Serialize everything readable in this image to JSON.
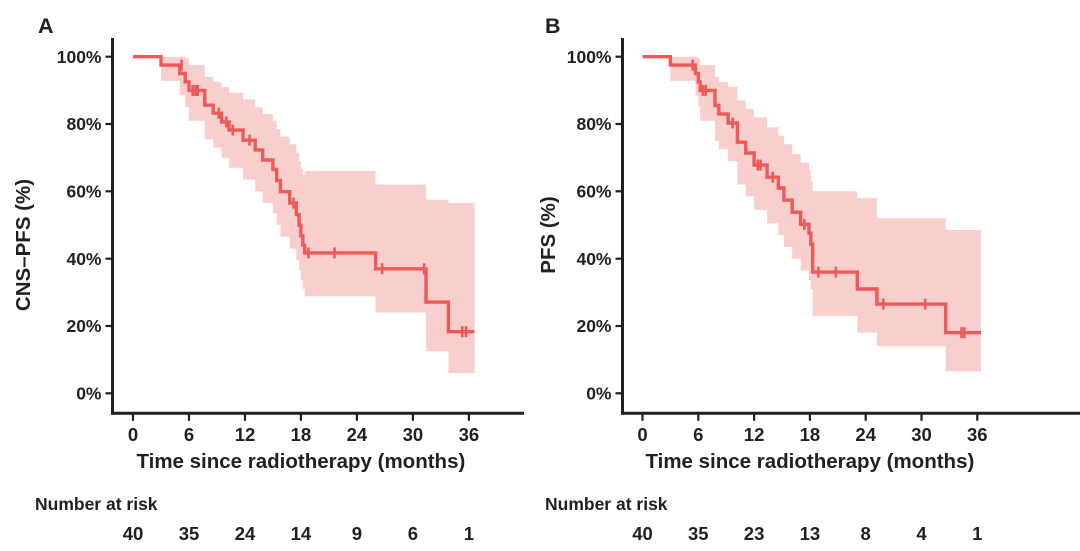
{
  "figure": {
    "background": "#ffffff",
    "panels": [
      "A",
      "B"
    ]
  },
  "colors": {
    "curve": "#ea5b59",
    "band": "#f9cfce",
    "axis": "#231f20",
    "text": "#231f20"
  },
  "chart_data": [
    {
      "type": "line",
      "km_style": "step_with_ci",
      "panel_letter": "A",
      "ylabel": "CNS–PFS (%)",
      "xlabel": "Time since radiotherapy (months)",
      "xlim": [
        0,
        36
      ],
      "ylim": [
        0,
        100
      ],
      "xticks": [
        0,
        6,
        12,
        18,
        24,
        30,
        36
      ],
      "ytick_labels": [
        "0%",
        "20%",
        "40%",
        "60%",
        "80%",
        "100%"
      ],
      "yticks": [
        0,
        20,
        40,
        60,
        80,
        100
      ],
      "grid": "off",
      "legend": "none",
      "risk_label": "Number at risk",
      "risk_numbers": [
        40,
        35,
        24,
        14,
        9,
        6,
        1
      ],
      "end_time": 36.6,
      "curve": [
        [
          0,
          100
        ],
        [
          3,
          97.5
        ],
        [
          5.0,
          95.0
        ],
        [
          5.6,
          92.5
        ],
        [
          6.0,
          90.0
        ],
        [
          7.7,
          85.6
        ],
        [
          8.6,
          83.2
        ],
        [
          9.5,
          80.6
        ],
        [
          10.3,
          78.2
        ],
        [
          11.8,
          75.2
        ],
        [
          13.1,
          72.3
        ],
        [
          13.9,
          69.3
        ],
        [
          15.0,
          66.5
        ],
        [
          15.4,
          63.2
        ],
        [
          15.8,
          59.9
        ],
        [
          16.8,
          56.5
        ],
        [
          17.5,
          53.1
        ],
        [
          17.8,
          49.9
        ],
        [
          18.0,
          46.8
        ],
        [
          18.2,
          44.0
        ],
        [
          18.4,
          41.7
        ],
        [
          26.0,
          37.0
        ],
        [
          31.4,
          27.1
        ],
        [
          33.8,
          18.3
        ]
      ],
      "censor_marks": [
        [
          5.2,
          97.5
        ],
        [
          6.4,
          90.0
        ],
        [
          6.7,
          90.0
        ],
        [
          6.95,
          90.0
        ],
        [
          9.2,
          83.2
        ],
        [
          10.0,
          80.6
        ],
        [
          10.7,
          78.2
        ],
        [
          12.5,
          75.2
        ],
        [
          17.2,
          56.5
        ],
        [
          18.8,
          41.7
        ],
        [
          21.6,
          41.7
        ],
        [
          26.7,
          37.0
        ],
        [
          31.2,
          37.0
        ],
        [
          35.3,
          18.3
        ],
        [
          35.7,
          18.3
        ]
      ],
      "ci_band": [
        [
          3,
          92.8,
          100
        ],
        [
          5.0,
          88.5,
          100
        ],
        [
          5.6,
          85,
          99.5
        ],
        [
          6.0,
          81,
          97.5
        ],
        [
          7.7,
          75.5,
          94
        ],
        [
          8.6,
          73,
          92.5
        ],
        [
          9.5,
          70,
          91
        ],
        [
          10.3,
          67,
          89.3
        ],
        [
          11.8,
          63.5,
          87.3
        ],
        [
          13.1,
          60,
          85
        ],
        [
          13.9,
          56.5,
          83
        ],
        [
          15.0,
          53.5,
          81
        ],
        [
          15.4,
          50,
          78.5
        ],
        [
          15.8,
          46.5,
          76.2
        ],
        [
          16.8,
          43,
          74
        ],
        [
          17.5,
          39.5,
          71.5
        ],
        [
          17.8,
          36.5,
          69
        ],
        [
          18.0,
          33.5,
          66.8
        ],
        [
          18.2,
          31,
          64.8
        ],
        [
          18.4,
          28.8,
          66
        ],
        [
          26.0,
          24,
          62
        ],
        [
          31.4,
          12.5,
          57.5
        ],
        [
          33.8,
          6,
          56.5
        ]
      ]
    },
    {
      "type": "line",
      "km_style": "step_with_ci",
      "panel_letter": "B",
      "ylabel": "PFS (%)",
      "xlabel": "Time since radiotherapy (months)",
      "xlim": [
        0,
        36
      ],
      "ylim": [
        0,
        100
      ],
      "xticks": [
        0,
        6,
        12,
        18,
        24,
        30,
        36
      ],
      "ytick_labels": [
        "0%",
        "20%",
        "40%",
        "60%",
        "80%",
        "100%"
      ],
      "yticks": [
        0,
        20,
        40,
        60,
        80,
        100
      ],
      "grid": "off",
      "legend": "none",
      "risk_label": "Number at risk",
      "risk_numbers": [
        40,
        35,
        23,
        13,
        8,
        4,
        1
      ],
      "end_time": 36.4,
      "curve": [
        [
          0,
          100
        ],
        [
          3,
          97.5
        ],
        [
          5.7,
          95.0
        ],
        [
          6.0,
          92.5
        ],
        [
          6.2,
          90.0
        ],
        [
          7.8,
          85.5
        ],
        [
          8.2,
          83.0
        ],
        [
          9.2,
          80.3
        ],
        [
          10.2,
          74.6
        ],
        [
          11.1,
          71.4
        ],
        [
          12.0,
          67.8
        ],
        [
          13.4,
          64.2
        ],
        [
          14.6,
          61.0
        ],
        [
          15.2,
          57.4
        ],
        [
          16.1,
          53.8
        ],
        [
          17.0,
          50.2
        ],
        [
          17.9,
          47.6
        ],
        [
          18.1,
          44.3
        ],
        [
          18.3,
          36.0
        ],
        [
          23.1,
          31.0
        ],
        [
          25.2,
          26.5
        ],
        [
          32.6,
          18.0
        ]
      ],
      "censor_marks": [
        [
          5.4,
          97.5
        ],
        [
          6.5,
          90.0
        ],
        [
          6.8,
          90.0
        ],
        [
          9.7,
          80.3
        ],
        [
          12.4,
          67.8
        ],
        [
          12.7,
          67.8
        ],
        [
          14.0,
          64.2
        ],
        [
          17.4,
          50.2
        ],
        [
          18.9,
          36.0
        ],
        [
          20.8,
          36.0
        ],
        [
          25.9,
          26.5
        ],
        [
          30.4,
          26.5
        ],
        [
          34.3,
          18.0
        ],
        [
          34.6,
          18.0
        ]
      ],
      "ci_band": [
        [
          3,
          92.8,
          100
        ],
        [
          5.7,
          88.5,
          100
        ],
        [
          6.0,
          85,
          99.5
        ],
        [
          6.2,
          81,
          97.5
        ],
        [
          7.8,
          75,
          94
        ],
        [
          8.2,
          72.5,
          92.5
        ],
        [
          9.2,
          69,
          91
        ],
        [
          10.2,
          62,
          87
        ],
        [
          11.1,
          58.5,
          84.5
        ],
        [
          12.0,
          54.5,
          82
        ],
        [
          13.4,
          50.5,
          79
        ],
        [
          14.6,
          47,
          76.5
        ],
        [
          15.2,
          43.5,
          74
        ],
        [
          16.1,
          40,
          71
        ],
        [
          17.0,
          36.5,
          68.5
        ],
        [
          17.9,
          33.5,
          66
        ],
        [
          18.1,
          31,
          63
        ],
        [
          18.3,
          23,
          60
        ],
        [
          23.1,
          18,
          58
        ],
        [
          25.2,
          14,
          52
        ],
        [
          32.6,
          6.5,
          48.5
        ]
      ]
    }
  ]
}
